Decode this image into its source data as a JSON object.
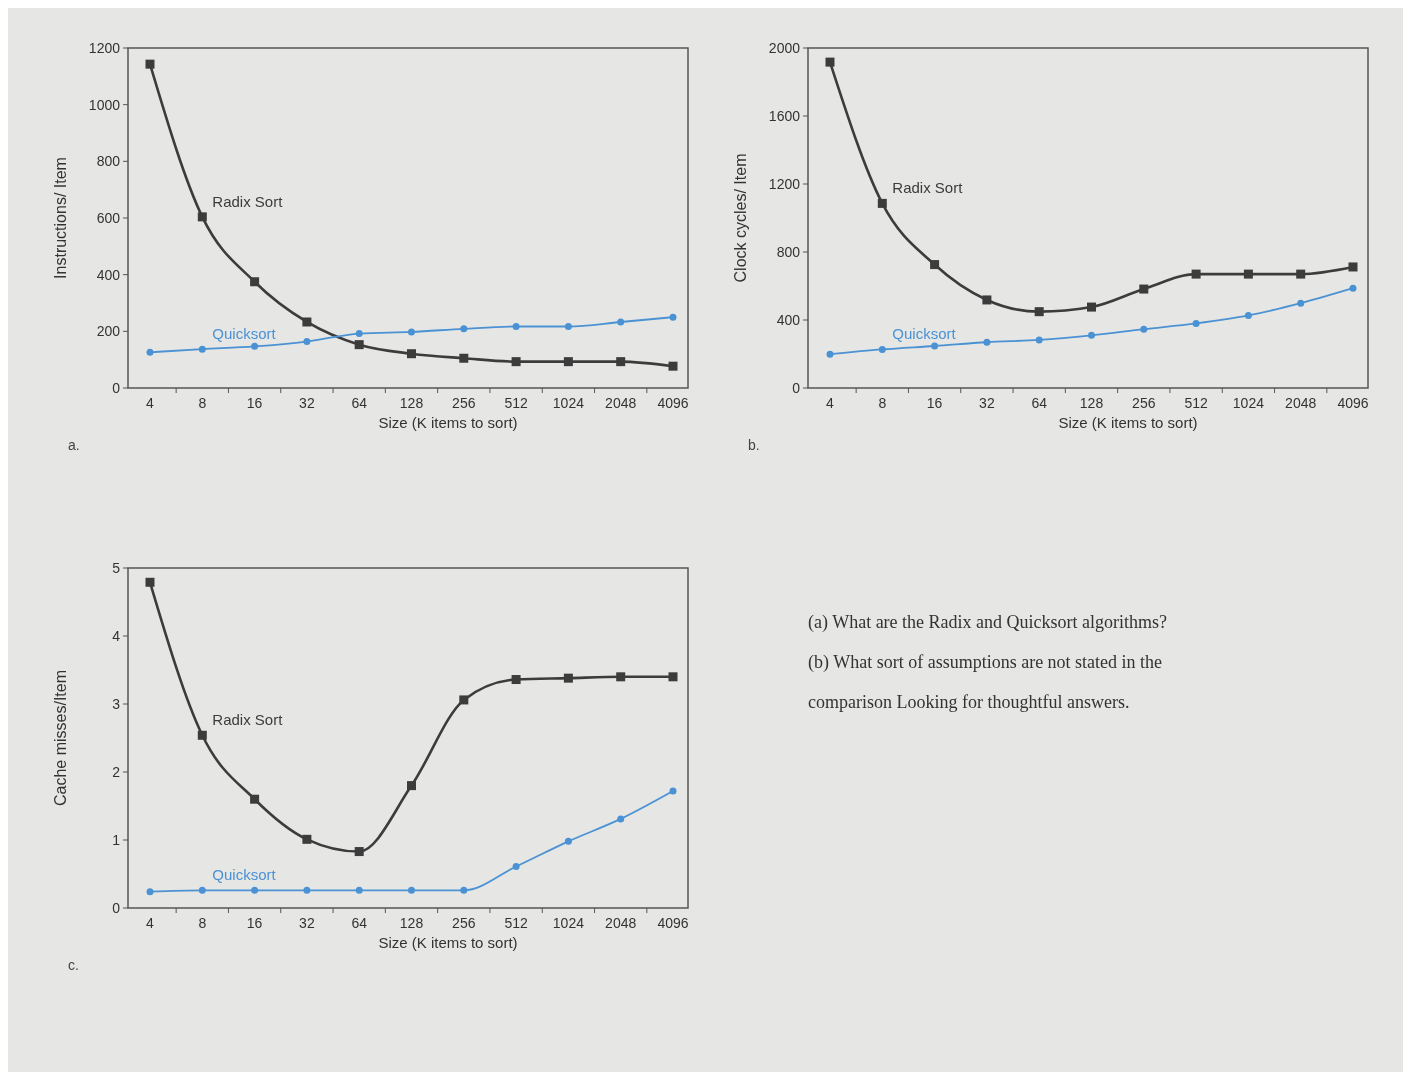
{
  "chart_data": [
    {
      "type": "line",
      "xlabel": "Size (K items to sort)",
      "ylabel": "Instructions/ Item",
      "categories": [
        "4",
        "8",
        "16",
        "32",
        "64",
        "128",
        "256",
        "512",
        "1024",
        "2048",
        "4096"
      ],
      "ylim": [
        0,
        1200
      ],
      "yticks": [
        0,
        200,
        400,
        600,
        800,
        1000,
        1200
      ],
      "grid": false,
      "legend": false,
      "annotations": [
        "a."
      ],
      "series": [
        {
          "name": "Radix Sort",
          "color": "#3c3c3c",
          "marker": "square",
          "values": [
            1143,
            604,
            375,
            233,
            153,
            121,
            105,
            93,
            93,
            93,
            77
          ]
        },
        {
          "name": "Quicksort",
          "color": "#4a92d4",
          "marker": "circle",
          "values": [
            126,
            137,
            147,
            164,
            192,
            198,
            209,
            217,
            217,
            233,
            250
          ]
        }
      ]
    },
    {
      "type": "line",
      "xlabel": "Size (K items to sort)",
      "ylabel": "Clock cycles/ Item",
      "categories": [
        "4",
        "8",
        "16",
        "32",
        "64",
        "128",
        "256",
        "512",
        "1024",
        "2048",
        "4096"
      ],
      "ylim": [
        0,
        2000
      ],
      "yticks": [
        0,
        400,
        800,
        1200,
        1600,
        2000
      ],
      "grid": false,
      "legend": false,
      "annotations": [
        "b."
      ],
      "series": [
        {
          "name": "Radix Sort",
          "color": "#3c3c3c",
          "marker": "square",
          "values": [
            1917,
            1086,
            726,
            518,
            449,
            476,
            582,
            670,
            670,
            670,
            712
          ]
        },
        {
          "name": "Quicksort",
          "color": "#4a92d4",
          "marker": "circle",
          "values": [
            199,
            227,
            247,
            269,
            283,
            310,
            346,
            380,
            427,
            499,
            587
          ]
        }
      ]
    },
    {
      "type": "line",
      "xlabel": "Size (K items to sort)",
      "ylabel": "Cache misses/Item",
      "categories": [
        "4",
        "8",
        "16",
        "32",
        "64",
        "128",
        "256",
        "512",
        "1024",
        "2048",
        "4096"
      ],
      "ylim": [
        0,
        5
      ],
      "yticks": [
        0,
        1,
        2,
        3,
        4,
        5
      ],
      "grid": false,
      "legend": false,
      "annotations": [
        "c.",
        "(a) What are the Radix and Quicksort algorithms?",
        "(b) What sort of assumptions are not stated in the comparison Looking for thoughtful answers."
      ],
      "series": [
        {
          "name": "Radix Sort",
          "color": "#3c3c3c",
          "marker": "square",
          "values": [
            4.79,
            2.54,
            1.6,
            1.01,
            0.83,
            1.8,
            3.06,
            3.36,
            3.38,
            3.4,
            3.4
          ]
        },
        {
          "name": "Quicksort",
          "color": "#4a92d4",
          "marker": "circle",
          "values": [
            0.24,
            0.26,
            0.26,
            0.26,
            0.26,
            0.26,
            0.26,
            0.61,
            0.98,
            1.31,
            1.72
          ]
        }
      ]
    }
  ]
}
